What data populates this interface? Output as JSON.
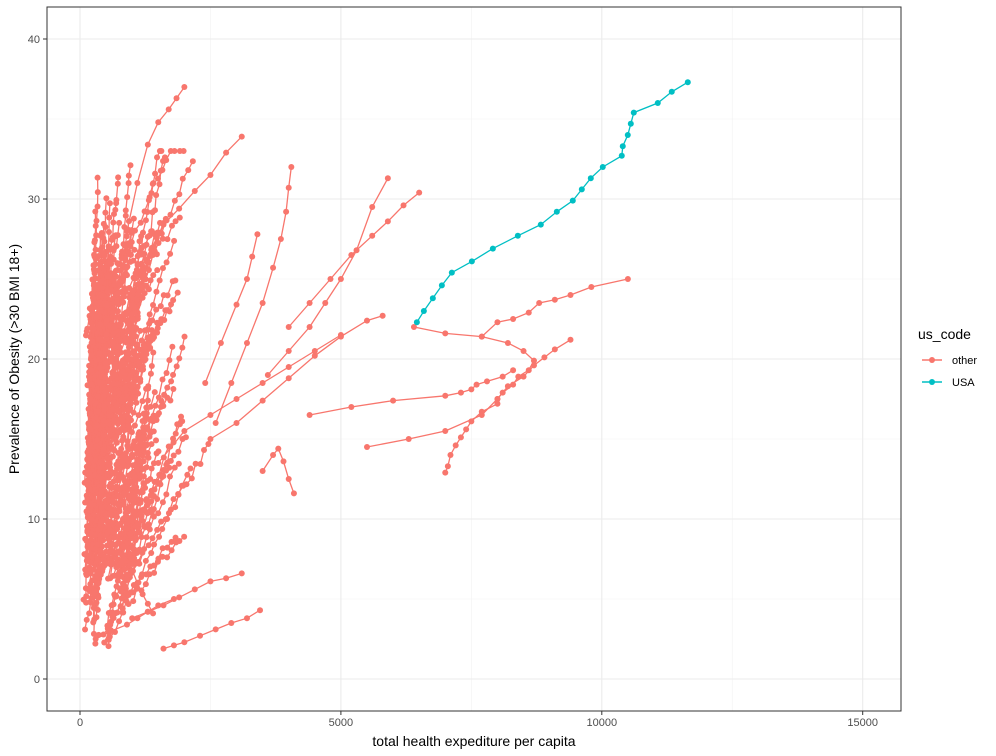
{
  "chart_data": {
    "type": "line",
    "title": "",
    "xlabel": "total health expediture per capita",
    "ylabel": "Prevalence of Obesity (>30 BMI 18+)",
    "xlim": [
      -600,
      15800
    ],
    "ylim": [
      -2,
      42
    ],
    "x_ticks": [
      0,
      5000,
      10000,
      15000
    ],
    "x_tick_labels": [
      "0",
      "5000",
      "10000",
      "15000"
    ],
    "y_ticks": [
      0,
      10,
      20,
      30,
      40
    ],
    "y_tick_labels": [
      "0",
      "10",
      "20",
      "30",
      "40"
    ],
    "grid": true,
    "legend": {
      "title": "us_code",
      "position": "right",
      "entries": [
        {
          "label": "other",
          "color": "#F8766D"
        },
        {
          "label": "USA",
          "color": "#00BFC4"
        }
      ]
    },
    "series": [
      {
        "name": "USA",
        "color": "#00BFC4",
        "x": [
          6456,
          6590,
          6762,
          6935,
          7126,
          7510,
          7912,
          8391,
          8831,
          9138,
          9444,
          9617,
          9789,
          10019,
          10383,
          10402,
          10498,
          10556,
          10613,
          11073,
          11341,
          11648
        ],
        "y": [
          22.3,
          23.0,
          23.8,
          24.6,
          25.4,
          26.1,
          26.9,
          27.7,
          28.4,
          29.2,
          29.9,
          30.6,
          31.3,
          32.0,
          32.7,
          33.3,
          34.0,
          34.7,
          35.4,
          36.0,
          36.7,
          37.3
        ]
      },
      {
        "name": "other",
        "color": "#F8766D",
        "traces": [
          {
            "x": [
              6400,
              7000,
              7700,
              8200,
              8500,
              8700,
              8600,
              8400,
              8300,
              8100,
              8000
            ],
            "y": [
              22.0,
              21.6,
              21.4,
              21.0,
              20.5,
              19.9,
              19.3,
              18.9,
              18.4,
              17.9,
              17.5
            ]
          },
          {
            "x": [
              7700,
              8000,
              8300,
              8600,
              8800,
              9100,
              9400,
              9800,
              10500
            ],
            "y": [
              21.4,
              22.3,
              22.5,
              22.9,
              23.5,
              23.7,
              24.0,
              24.5,
              25.0
            ]
          },
          {
            "x": [
              5500,
              6300,
              7000,
              7700,
              8000,
              8200,
              8500,
              8700,
              8900,
              9100,
              9400
            ],
            "y": [
              14.5,
              15.0,
              15.5,
              16.5,
              17.5,
              18.3,
              18.9,
              19.6,
              20.1,
              20.6,
              21.2
            ]
          },
          {
            "x": [
              4400,
              5200,
              6000,
              7000,
              7300,
              7500,
              7600,
              7800,
              8100,
              8300
            ],
            "y": [
              16.5,
              17.0,
              17.4,
              17.7,
              17.9,
              18.1,
              18.4,
              18.6,
              18.9,
              19.3
            ]
          },
          {
            "x": [
              7000,
              7050,
              7100,
              7200,
              7300,
              7400,
              7500,
              7700,
              8000
            ],
            "y": [
              12.9,
              13.3,
              14.0,
              14.6,
              15.1,
              15.6,
              16.1,
              16.7,
              17.2
            ]
          },
          {
            "x": [
              4000,
              4400,
              4800,
              5200,
              5600,
              5900,
              6200,
              6500
            ],
            "y": [
              22.0,
              23.5,
              25.0,
              26.5,
              27.7,
              28.6,
              29.6,
              30.4
            ]
          },
          {
            "x": [
              3600,
              4000,
              4400,
              4700,
              5000,
              5300,
              5600,
              5900
            ],
            "y": [
              19.0,
              20.5,
              22.0,
              23.5,
              25.0,
              26.8,
              29.5,
              31.3
            ]
          },
          {
            "x": [
              2600,
              2900,
              3200,
              3500,
              3700,
              3850,
              3950,
              4000,
              4050
            ],
            "y": [
              16.0,
              18.5,
              21.0,
              23.5,
              25.7,
              27.5,
              29.2,
              30.7,
              32.0
            ]
          },
          {
            "x": [
              2400,
              2700,
              3000,
              3200,
              3300,
              3400
            ],
            "y": [
              18.5,
              21.0,
              23.4,
              25.0,
              26.4,
              27.8
            ]
          },
          {
            "x": [
              900,
              1100,
              1300,
              1500,
              1700,
              1850,
              2000
            ],
            "y": [
              28.0,
              31.0,
              33.4,
              34.8,
              35.6,
              36.3,
              37.0
            ]
          },
          {
            "x": [
              1300,
              1600,
              1900,
              2200,
              2500,
              2800,
              3100
            ],
            "y": [
              26.0,
              28.4,
              29.4,
              30.5,
              31.5,
              32.9,
              33.9
            ]
          },
          {
            "x": [
              1000,
              1300,
              1600,
              1900,
              2200,
              2500,
              2800,
              3100
            ],
            "y": [
              3.8,
              4.2,
              4.6,
              5.1,
              5.6,
              6.1,
              6.3,
              6.6
            ]
          },
          {
            "x": [
              1600,
              1800,
              2000,
              2300,
              2600,
              2900,
              3200,
              3450
            ],
            "y": [
              1.9,
              2.1,
              2.3,
              2.7,
              3.1,
              3.5,
              3.8,
              4.3
            ]
          },
          {
            "x": [
              300,
              600,
              900,
              1100,
              1300,
              1500,
              1800
            ],
            "y": [
              2.5,
              3.0,
              3.4,
              3.8,
              4.2,
              4.6,
              5.0
            ]
          },
          {
            "x": [
              600,
              800,
              1000,
              1100,
              1200,
              1300,
              1400
            ],
            "y": [
              8.0,
              7.3,
              6.8,
              6.0,
              5.3,
              4.7,
              4.1
            ]
          },
          {
            "x": [
              3500,
              3700,
              3800,
              3900,
              4000,
              4100
            ],
            "y": [
              13.0,
              14.0,
              14.4,
              13.6,
              12.5,
              11.6
            ]
          },
          {
            "x": [
              1500,
              2000,
              2500,
              3000,
              3500,
              4000,
              4500,
              5000
            ],
            "y": [
              13.5,
              15.5,
              16.5,
              17.5,
              18.5,
              19.5,
              20.5,
              21.5
            ]
          },
          {
            "x": [
              2500,
              3000,
              3500,
              4000,
              4500,
              5000,
              5500,
              5800
            ],
            "y": [
              15.0,
              16.0,
              17.4,
              18.8,
              20.2,
              21.4,
              22.4,
              22.7
            ]
          }
        ]
      }
    ]
  }
}
